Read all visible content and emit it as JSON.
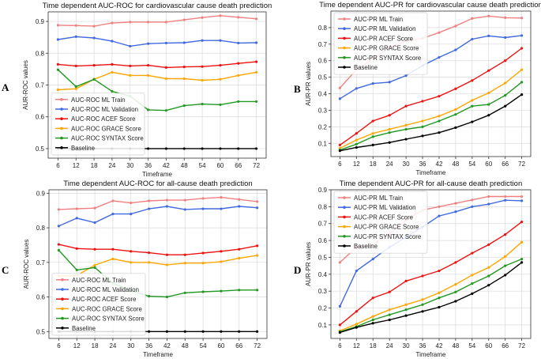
{
  "colors": {
    "ML Train": "#f08080",
    "ML Validation": "#4169e1",
    "ACEF": "#ee1111",
    "GRACE": "#ffa500",
    "SYNTAX": "#229922",
    "Baseline": "#000000"
  },
  "chart_data": [
    {
      "panel": "A",
      "type": "line",
      "title": "Time dependent AUC-ROC for cardiovascular cause death prediction",
      "xlabel": "Timeframe",
      "ylabel": "AUR-ROC values",
      "x": [
        6,
        12,
        18,
        24,
        30,
        36,
        42,
        48,
        54,
        60,
        66,
        72
      ],
      "ylim": [
        0.47,
        0.93
      ],
      "yticks": [
        0.5,
        0.6,
        0.7,
        0.8,
        0.9
      ],
      "ytick_labels": [
        "0.5",
        "0.6",
        "0.7",
        "0.8",
        "0.9"
      ],
      "legend_loc": "lower-left",
      "series": [
        {
          "name": "AUC-ROC ML Train",
          "key": "ML Train",
          "values": [
            0.888,
            0.887,
            0.885,
            0.895,
            0.898,
            0.898,
            0.898,
            0.905,
            0.912,
            0.918,
            0.913,
            0.908
          ]
        },
        {
          "name": "AUC-ROC ML Validation",
          "key": "ML Validation",
          "values": [
            0.843,
            0.852,
            0.848,
            0.838,
            0.822,
            0.83,
            0.832,
            0.833,
            0.84,
            0.84,
            0.832,
            0.833
          ]
        },
        {
          "name": "AUC-ROC ACEF Score",
          "key": "ACEF",
          "values": [
            0.765,
            0.76,
            0.762,
            0.765,
            0.76,
            0.762,
            0.755,
            0.757,
            0.758,
            0.762,
            0.768,
            0.773
          ]
        },
        {
          "name": "AUC-ROC GRACE Score",
          "key": "GRACE",
          "values": [
            0.685,
            0.688,
            0.718,
            0.74,
            0.73,
            0.73,
            0.72,
            0.72,
            0.715,
            0.718,
            0.73,
            0.74
          ]
        },
        {
          "name": "AUC-ROC SYNTAX Score",
          "key": "SYNTAX",
          "values": [
            0.748,
            0.695,
            0.718,
            0.68,
            0.665,
            0.622,
            0.62,
            0.635,
            0.64,
            0.638,
            0.648,
            0.648
          ]
        },
        {
          "name": "Baseline",
          "key": "Baseline",
          "values": [
            0.5,
            0.5,
            0.5,
            0.5,
            0.5,
            0.5,
            0.5,
            0.5,
            0.5,
            0.5,
            0.5,
            0.5
          ]
        }
      ]
    },
    {
      "panel": "B",
      "type": "line",
      "title": "Time dependent AUC-PR for cardiovascular cause death prediction",
      "xlabel": "Timeframe",
      "ylabel": "AUR-PR values",
      "x": [
        6,
        12,
        18,
        24,
        30,
        36,
        42,
        48,
        54,
        60,
        66,
        72
      ],
      "ylim": [
        0.02,
        0.9
      ],
      "yticks": [
        0.1,
        0.2,
        0.3,
        0.4,
        0.5,
        0.6,
        0.7,
        0.8
      ],
      "ytick_labels": [
        "0.1",
        "0.2",
        "0.3",
        "0.4",
        "0.5",
        "0.6",
        "0.7",
        "0.8"
      ],
      "legend_loc": "upper-left",
      "series": [
        {
          "name": "AUC-PR ML Train",
          "key": "ML Train",
          "values": [
            0.435,
            0.545,
            0.61,
            0.68,
            0.72,
            0.735,
            0.77,
            0.81,
            0.855,
            0.87,
            0.86,
            0.858
          ]
        },
        {
          "name": "AUC-PR ML Validation",
          "key": "ML Validation",
          "values": [
            0.37,
            0.432,
            0.462,
            0.47,
            0.51,
            0.57,
            0.62,
            0.665,
            0.73,
            0.75,
            0.74,
            0.752
          ]
        },
        {
          "name": "AUC-PR ACEF Score",
          "key": "ACEF",
          "values": [
            0.09,
            0.16,
            0.235,
            0.27,
            0.325,
            0.355,
            0.385,
            0.43,
            0.48,
            0.54,
            0.6,
            0.675
          ]
        },
        {
          "name": "AUC-PR GRACE Score",
          "key": "GRACE",
          "values": [
            0.07,
            0.12,
            0.16,
            0.185,
            0.21,
            0.235,
            0.265,
            0.305,
            0.36,
            0.405,
            0.465,
            0.545
          ]
        },
        {
          "name": "AUC-PR SYNTAX Score",
          "key": "SYNTAX",
          "values": [
            0.06,
            0.095,
            0.14,
            0.165,
            0.185,
            0.2,
            0.235,
            0.275,
            0.325,
            0.335,
            0.39,
            0.47
          ]
        },
        {
          "name": "Baseline",
          "key": "Baseline",
          "values": [
            0.055,
            0.075,
            0.09,
            0.105,
            0.125,
            0.145,
            0.165,
            0.195,
            0.23,
            0.27,
            0.325,
            0.395
          ]
        }
      ]
    },
    {
      "panel": "C",
      "type": "line",
      "title": "Time dependent AUC-ROC for all-cause death prediction",
      "xlabel": "Timeframe",
      "ylabel": "AUR-ROC values",
      "x": [
        6,
        12,
        18,
        24,
        30,
        36,
        42,
        48,
        54,
        60,
        66,
        72
      ],
      "ylim": [
        0.48,
        0.91
      ],
      "yticks": [
        0.5,
        0.6,
        0.7,
        0.8,
        0.9
      ],
      "ytick_labels": [
        "0.5",
        "0.6",
        "0.7",
        "0.8",
        "0.9"
      ],
      "legend_loc": "lower-left",
      "series": [
        {
          "name": "AUC-ROC ML Train",
          "key": "ML Train",
          "values": [
            0.853,
            0.855,
            0.857,
            0.878,
            0.872,
            0.878,
            0.88,
            0.88,
            0.885,
            0.888,
            0.882,
            0.876
          ]
        },
        {
          "name": "AUC-ROC ML Validation",
          "key": "ML Validation",
          "values": [
            0.805,
            0.828,
            0.815,
            0.84,
            0.84,
            0.855,
            0.862,
            0.853,
            0.855,
            0.855,
            0.862,
            0.858
          ]
        },
        {
          "name": "AUC-ROC ACEF Score",
          "key": "ACEF",
          "values": [
            0.752,
            0.74,
            0.738,
            0.738,
            0.732,
            0.728,
            0.722,
            0.722,
            0.727,
            0.732,
            0.738,
            0.748
          ]
        },
        {
          "name": "AUC-ROC GRACE Score",
          "key": "GRACE",
          "values": [
            0.66,
            0.662,
            0.692,
            0.71,
            0.7,
            0.7,
            0.693,
            0.698,
            0.698,
            0.702,
            0.712,
            0.72
          ]
        },
        {
          "name": "AUC-ROC SYNTAX Score",
          "key": "SYNTAX",
          "values": [
            0.735,
            0.678,
            0.685,
            0.64,
            0.618,
            0.602,
            0.6,
            0.612,
            0.615,
            0.617,
            0.62,
            0.62
          ]
        },
        {
          "name": "Baseline",
          "key": "Baseline",
          "values": [
            0.5,
            0.5,
            0.5,
            0.5,
            0.5,
            0.5,
            0.5,
            0.5,
            0.5,
            0.5,
            0.5,
            0.5
          ]
        }
      ]
    },
    {
      "panel": "D",
      "type": "line",
      "title": "Time dependent AUC-PR for all-cause death prediction",
      "xlabel": "Timeframe",
      "ylabel": "AUR-PR values",
      "x": [
        6,
        12,
        18,
        24,
        30,
        36,
        42,
        48,
        54,
        60,
        66,
        72
      ],
      "ylim": [
        0.02,
        0.9
      ],
      "yticks": [
        0.1,
        0.2,
        0.3,
        0.4,
        0.5,
        0.6,
        0.7,
        0.8,
        0.9
      ],
      "ytick_labels": [
        "0.1",
        "0.2",
        "0.3",
        "0.4",
        "0.5",
        "0.6",
        "0.7",
        "0.8",
        "0.9"
      ],
      "legend_loc": "upper-left",
      "series": [
        {
          "name": "AUC-PR ML Train",
          "key": "ML Train",
          "values": [
            0.47,
            0.56,
            0.575,
            0.64,
            0.72,
            0.78,
            0.8,
            0.82,
            0.84,
            0.86,
            0.86,
            0.86
          ]
        },
        {
          "name": "AUC-PR ML Validation",
          "key": "ML Validation",
          "values": [
            0.21,
            0.42,
            0.49,
            0.56,
            0.62,
            0.68,
            0.745,
            0.77,
            0.8,
            0.815,
            0.838,
            0.835
          ]
        },
        {
          "name": "AUC-PR ACEF Score",
          "key": "ACEF",
          "values": [
            0.1,
            0.18,
            0.26,
            0.295,
            0.36,
            0.39,
            0.42,
            0.47,
            0.525,
            0.575,
            0.635,
            0.71
          ]
        },
        {
          "name": "AUC-PR GRACE Score",
          "key": "GRACE",
          "values": [
            0.065,
            0.105,
            0.15,
            0.19,
            0.22,
            0.25,
            0.29,
            0.34,
            0.395,
            0.44,
            0.505,
            0.59
          ]
        },
        {
          "name": "AUC-PR SYNTAX Score",
          "key": "SYNTAX",
          "values": [
            0.06,
            0.09,
            0.13,
            0.16,
            0.19,
            0.22,
            0.26,
            0.295,
            0.345,
            0.39,
            0.45,
            0.49
          ]
        },
        {
          "name": "Baseline",
          "key": "Baseline",
          "values": [
            0.055,
            0.085,
            0.11,
            0.13,
            0.155,
            0.18,
            0.205,
            0.24,
            0.285,
            0.335,
            0.395,
            0.47
          ]
        }
      ]
    }
  ]
}
